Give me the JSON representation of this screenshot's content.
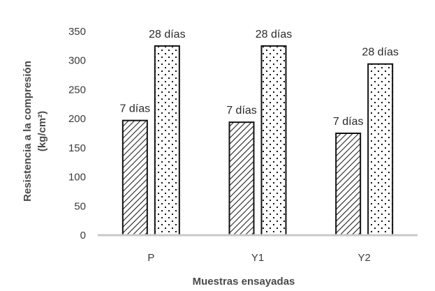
{
  "chart_data": {
    "type": "bar",
    "categories": [
      "P",
      "Y1",
      "Y2"
    ],
    "series": [
      {
        "values": [
          197,
          194,
          175
        ],
        "label": "7 días",
        "pattern": "diagonal-hatch"
      },
      {
        "values": [
          325,
          325,
          294
        ],
        "label": "28 días",
        "pattern": "dots"
      }
    ],
    "xlabel": "Muestras ensayadas",
    "ylabel_line1": "Resistencia a la compresión",
    "ylabel_line2": "(kg/cm²)",
    "ylim": [
      0,
      350
    ],
    "yticks": [
      0,
      50,
      100,
      150,
      200,
      250,
      300,
      350
    ],
    "grid": false,
    "legend": "none",
    "colors": {
      "bar_fill": "#ffffff",
      "bar_stroke": "#111111",
      "pattern": "#111111",
      "baseline": "#c8c8c8"
    }
  }
}
